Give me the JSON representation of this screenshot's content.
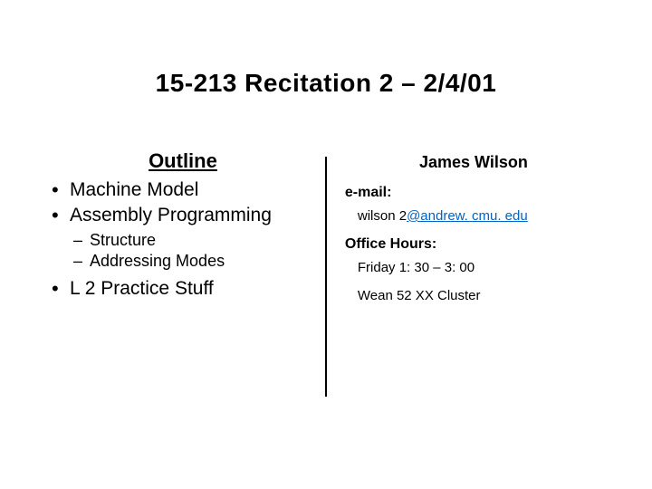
{
  "title": "15-213 Recitation 2 – 2/4/01",
  "left": {
    "heading": "Outline",
    "bullets": [
      {
        "text": "Machine Model"
      },
      {
        "text": "Assembly Programming",
        "sub": [
          {
            "text": "Structure"
          },
          {
            "text": "Addressing Modes"
          }
        ]
      },
      {
        "text": "L 2 Practice Stuff"
      }
    ]
  },
  "right": {
    "author": "James Wilson",
    "email_label": "e-mail:",
    "email_local": "wilson 2",
    "email_link": "@andrew. cmu. edu",
    "office_label": "Office Hours:",
    "office_time": "Friday 1: 30 – 3: 00",
    "office_place": "Wean 52 XX Cluster"
  },
  "colors": {
    "background": "#ffffff",
    "text": "#000000",
    "link": "#0563c1"
  }
}
